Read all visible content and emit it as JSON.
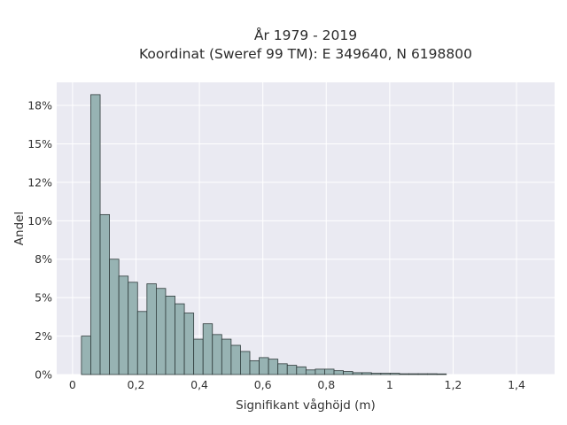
{
  "chart_data": {
    "type": "bar",
    "title": "År 1979 - 2019",
    "subtitle": "Koordinat (Sweref 99 TM): E 349640, N 6198800",
    "xlabel": "Signifikant våghöjd (m)",
    "ylabel": "Andel",
    "xlim": [
      -0.05,
      1.52
    ],
    "ylim": [
      0,
      0.19
    ],
    "bin_width": 0.0295,
    "x_ticks": [
      0,
      0.2,
      0.4,
      0.6,
      0.8,
      1,
      1.2,
      1.4
    ],
    "x_tick_labels": [
      "0",
      "0,2",
      "0,4",
      "0,6",
      "0,8",
      "1",
      "1,2",
      "1,4"
    ],
    "y_ticks": [
      0,
      0.025,
      0.05,
      0.075,
      0.1,
      0.125,
      0.15,
      0.175
    ],
    "y_tick_labels": [
      "0%",
      "2%",
      "5%",
      "8%",
      "10%",
      "12%",
      "15%",
      "18%"
    ],
    "bins_start": [
      0.028,
      0.0575,
      0.087,
      0.1165,
      0.146,
      0.1755,
      0.205,
      0.2345,
      0.264,
      0.2935,
      0.323,
      0.3525,
      0.382,
      0.4115,
      0.441,
      0.4705,
      0.5,
      0.5295,
      0.559,
      0.5885,
      0.618,
      0.6475,
      0.677,
      0.7065,
      0.736,
      0.7655,
      0.795,
      0.8245,
      0.854,
      0.8835,
      0.913,
      0.9425,
      0.972,
      1.0015,
      1.031,
      1.0605,
      1.09,
      1.1195,
      1.149
    ],
    "values": [
      0.025,
      0.182,
      0.104,
      0.075,
      0.064,
      0.06,
      0.041,
      0.059,
      0.056,
      0.051,
      0.046,
      0.04,
      0.023,
      0.033,
      0.026,
      0.023,
      0.019,
      0.015,
      0.009,
      0.011,
      0.01,
      0.007,
      0.006,
      0.005,
      0.003,
      0.0035,
      0.0035,
      0.0025,
      0.002,
      0.0012,
      0.0012,
      0.0008,
      0.0008,
      0.0008,
      0.0005,
      0.0005,
      0.0005,
      0.0005,
      0.0004
    ],
    "grid": true,
    "colors": {
      "bar_fill": "#97b3b3",
      "bar_edge": "#2f3b3b",
      "plot_background": "#eaeaf2",
      "grid": "#ffffff"
    }
  }
}
